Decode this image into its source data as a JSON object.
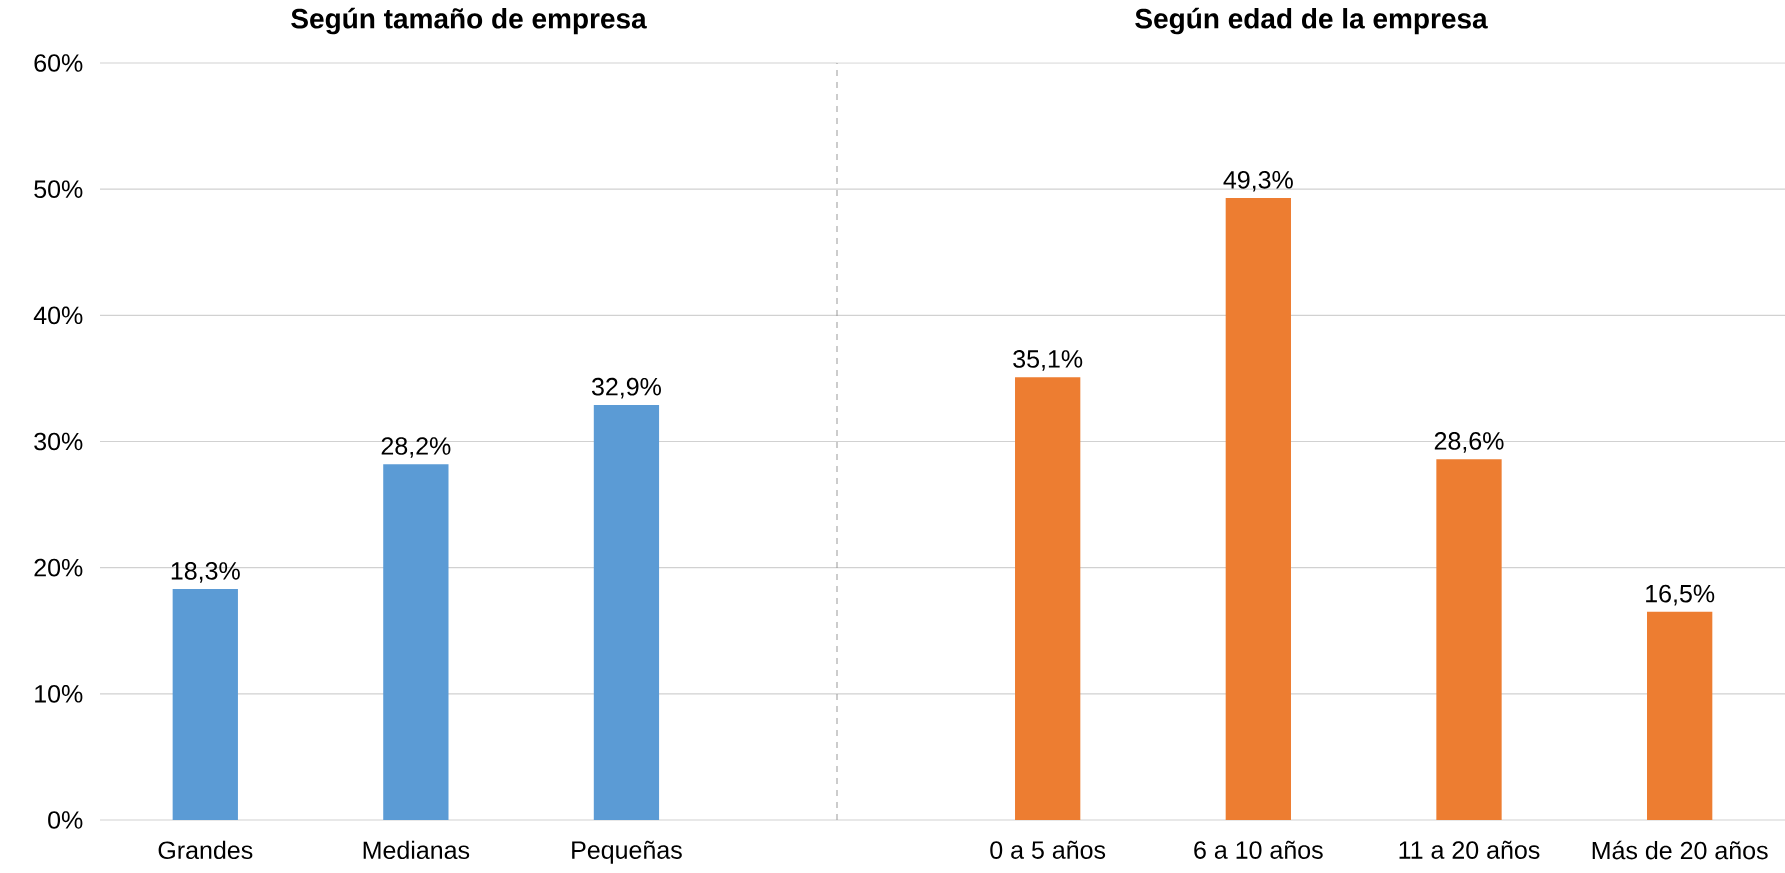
{
  "chart_data": [
    {
      "type": "bar",
      "title": "Según tamaño de empresa",
      "categories": [
        "Grandes",
        "Medianas",
        "Pequeñas"
      ],
      "series": [
        {
          "color": "#5b9bd5",
          "values": [
            18.3,
            28.2,
            32.9
          ],
          "value_labels": [
            "18,3%",
            "28,2%",
            "32,9%"
          ]
        }
      ],
      "ylim": [
        0,
        60
      ],
      "yticks": [
        {
          "value": 0,
          "label": "0%"
        },
        {
          "value": 10,
          "label": "10%"
        },
        {
          "value": 20,
          "label": "20%"
        },
        {
          "value": 30,
          "label": "30%"
        },
        {
          "value": 40,
          "label": "40%"
        },
        {
          "value": 50,
          "label": "50%"
        },
        {
          "value": 60,
          "label": "60%"
        }
      ],
      "grid": "y"
    },
    {
      "type": "bar",
      "title": "Según edad de la empresa",
      "categories": [
        "0 a 5 años",
        "6 a 10 años",
        "11 a 20 años",
        "Más de 20 años"
      ],
      "series": [
        {
          "color": "#ed7d31",
          "values": [
            35.1,
            49.3,
            28.6,
            16.5
          ],
          "value_labels": [
            "35,1%",
            "49,3%",
            "28,6%",
            "16,5%"
          ]
        }
      ],
      "ylim": [
        0,
        60
      ],
      "yticks": [
        {
          "value": 0,
          "label": null
        },
        {
          "value": 10,
          "label": null
        },
        {
          "value": 20,
          "label": null
        },
        {
          "value": 30,
          "label": null
        },
        {
          "value": 40,
          "label": null
        },
        {
          "value": 50,
          "label": null
        },
        {
          "value": 60,
          "label": null
        }
      ],
      "grid": "y",
      "tick_labels": "x"
    }
  ]
}
